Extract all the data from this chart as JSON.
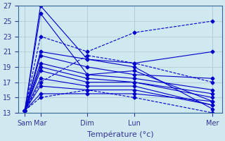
{
  "title": "",
  "xlabel": "Température (°c)",
  "ylabel": "",
  "ylim": [
    13,
    27
  ],
  "yticks": [
    13,
    15,
    17,
    19,
    21,
    23,
    25,
    27
  ],
  "background_color": "#d0e8f0",
  "grid_color": "#b0c8d8",
  "line_color": "#0000cc",
  "x_labels": [
    "Sam",
    "Mar",
    "Dim",
    "Lun",
    "Mer"
  ],
  "x_positions": [
    0,
    0.5,
    2,
    3.5,
    6
  ],
  "series": [
    {
      "x": [
        0,
        0.5,
        2,
        3.5,
        6
      ],
      "y": [
        13.3,
        27,
        20,
        19,
        13.5
      ],
      "dashed": false
    },
    {
      "x": [
        0,
        0.5,
        2,
        3.5,
        6
      ],
      "y": [
        13.3,
        26,
        18,
        18.5,
        14.5
      ],
      "dashed": false
    },
    {
      "x": [
        0,
        0.5,
        2,
        3.5,
        6
      ],
      "y": [
        13.3,
        21,
        20,
        19.5,
        21
      ],
      "dashed": false
    },
    {
      "x": [
        0,
        0.5,
        2,
        3.5,
        6
      ],
      "y": [
        13.3,
        20.5,
        19,
        18,
        17.5
      ],
      "dashed": false
    },
    {
      "x": [
        0,
        0.5,
        2,
        3.5,
        6
      ],
      "y": [
        13.3,
        19.5,
        18,
        17.5,
        16
      ],
      "dashed": false
    },
    {
      "x": [
        0,
        0.5,
        2,
        3.5,
        6
      ],
      "y": [
        13.3,
        19,
        17.5,
        17,
        15.5
      ],
      "dashed": false
    },
    {
      "x": [
        0,
        0.5,
        2,
        3.5,
        6
      ],
      "y": [
        13.3,
        18.5,
        17,
        17,
        15
      ],
      "dashed": false
    },
    {
      "x": [
        0,
        0.5,
        2,
        3.5,
        6
      ],
      "y": [
        13.3,
        17.5,
        16.5,
        16.5,
        14
      ],
      "dashed": false
    },
    {
      "x": [
        0,
        0.5,
        2,
        3.5,
        6
      ],
      "y": [
        13.3,
        16.5,
        16,
        16,
        14
      ],
      "dashed": false
    },
    {
      "x": [
        0,
        0.5,
        2,
        3.5,
        6
      ],
      "y": [
        13.3,
        15.5,
        15.5,
        15.5,
        14.5
      ],
      "dashed": false
    },
    {
      "x": [
        0,
        0.5,
        2,
        3.5,
        6
      ],
      "y": [
        13.3,
        23,
        21,
        23.5,
        25
      ],
      "dashed": true
    },
    {
      "x": [
        0,
        0.5,
        2,
        3.5,
        6
      ],
      "y": [
        13.3,
        17,
        20.5,
        19.5,
        17
      ],
      "dashed": true
    },
    {
      "x": [
        0,
        0.5,
        2,
        3.5,
        6
      ],
      "y": [
        13.3,
        15,
        16,
        15,
        13
      ],
      "dashed": true
    }
  ],
  "tick_label_fontsize": 7,
  "axis_label_fontsize": 8
}
